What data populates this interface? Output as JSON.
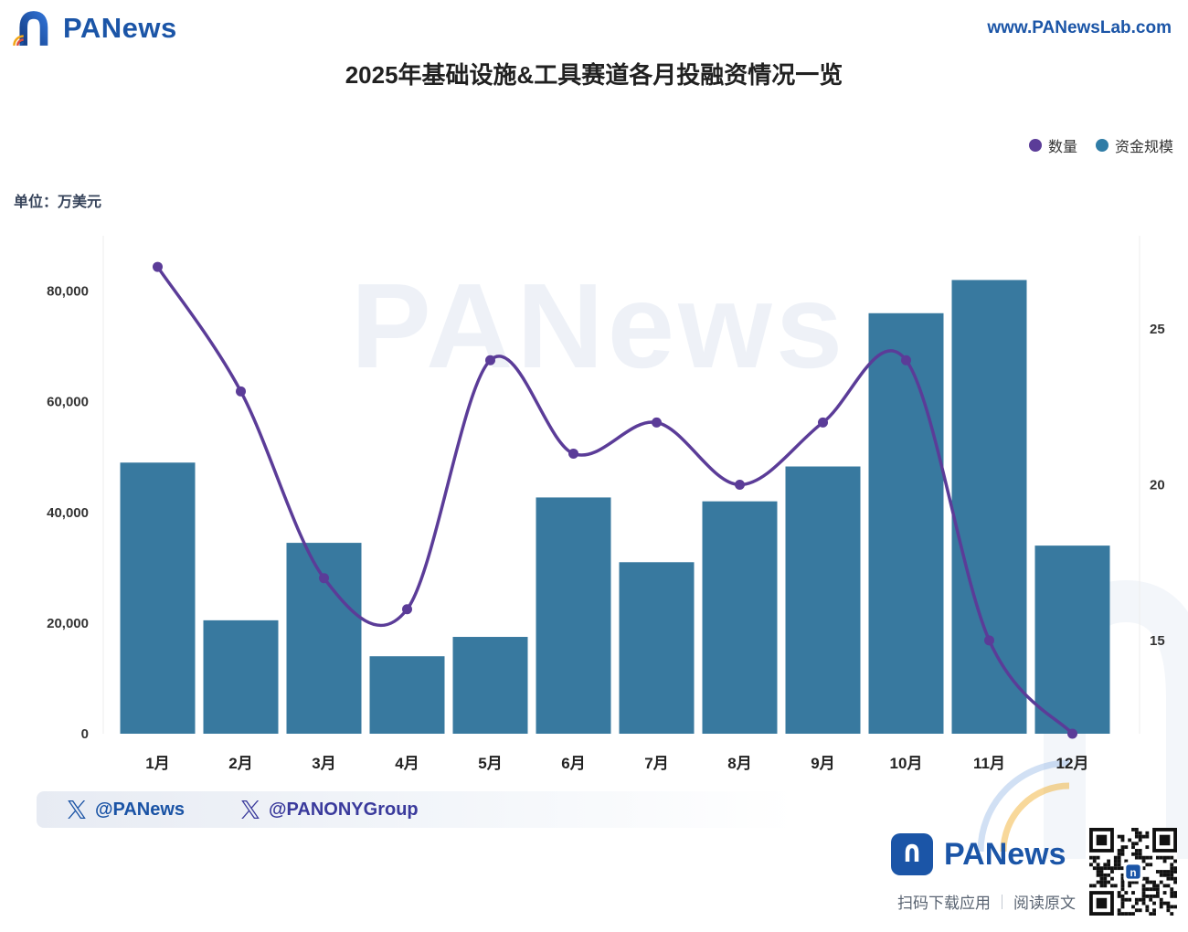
{
  "header": {
    "brand": "PANews",
    "brand_color": "#1b55a7",
    "logo_icon": "panews-arch-logo-icon",
    "website_link": "www.PANewsLab.com"
  },
  "title": "2025年基础设施&工具赛道各月投融资情况一览",
  "unit_label": "单位：万美元",
  "legend": {
    "position": "top-right",
    "items": [
      {
        "label": "数量",
        "color": "#5b3c98",
        "marker": "circle"
      },
      {
        "label": "资金规模",
        "color": "#2f7ca6",
        "marker": "circle"
      }
    ]
  },
  "chart_data": {
    "type": "combo",
    "title": "2025年基础设施&工具赛道各月投融资情况一览",
    "unit": "万美元",
    "grid": false,
    "watermark": "PANews",
    "categories": [
      "1月",
      "2月",
      "3月",
      "4月",
      "5月",
      "6月",
      "7月",
      "8月",
      "9月",
      "10月",
      "11月",
      "12月"
    ],
    "series": [
      {
        "name": "资金规模",
        "type": "bar",
        "axis": "left",
        "color": "#38799f",
        "values": [
          49000,
          20500,
          34500,
          14000,
          17500,
          42700,
          31000,
          42000,
          48300,
          76000,
          82000,
          34000
        ]
      },
      {
        "name": "数量",
        "type": "line",
        "axis": "right",
        "color": "#5b3c98",
        "values": [
          27,
          23,
          17,
          16,
          24,
          21,
          22,
          20,
          22,
          24,
          15,
          12
        ]
      }
    ],
    "left_axis": {
      "min": 0,
      "max": 90000,
      "ticks": [
        {
          "value": 0,
          "label": "0"
        },
        {
          "value": 20000,
          "label": "20,000"
        },
        {
          "value": 40000,
          "label": "40,000"
        },
        {
          "value": 60000,
          "label": "60,000"
        },
        {
          "value": 80000,
          "label": "80,000"
        }
      ]
    },
    "right_axis": {
      "min": 12,
      "max": 28,
      "ticks": [
        {
          "value": 15,
          "label": "15"
        },
        {
          "value": 20,
          "label": "20"
        },
        {
          "value": 25,
          "label": "25"
        }
      ]
    }
  },
  "footer": {
    "handles": [
      {
        "icon": "x-logo-icon",
        "label": "@PANews",
        "color": "#1a53a5"
      },
      {
        "icon": "x-logo-icon",
        "label": "@PANONYGroup",
        "color": "#3a3a9c"
      }
    ]
  },
  "bottom_bar": {
    "brand": "PANews",
    "logo_icon": "panews-badge-icon",
    "caption_download": "扫码下载应用",
    "caption_read": "阅读原文",
    "qr_icon": "qr-code"
  }
}
